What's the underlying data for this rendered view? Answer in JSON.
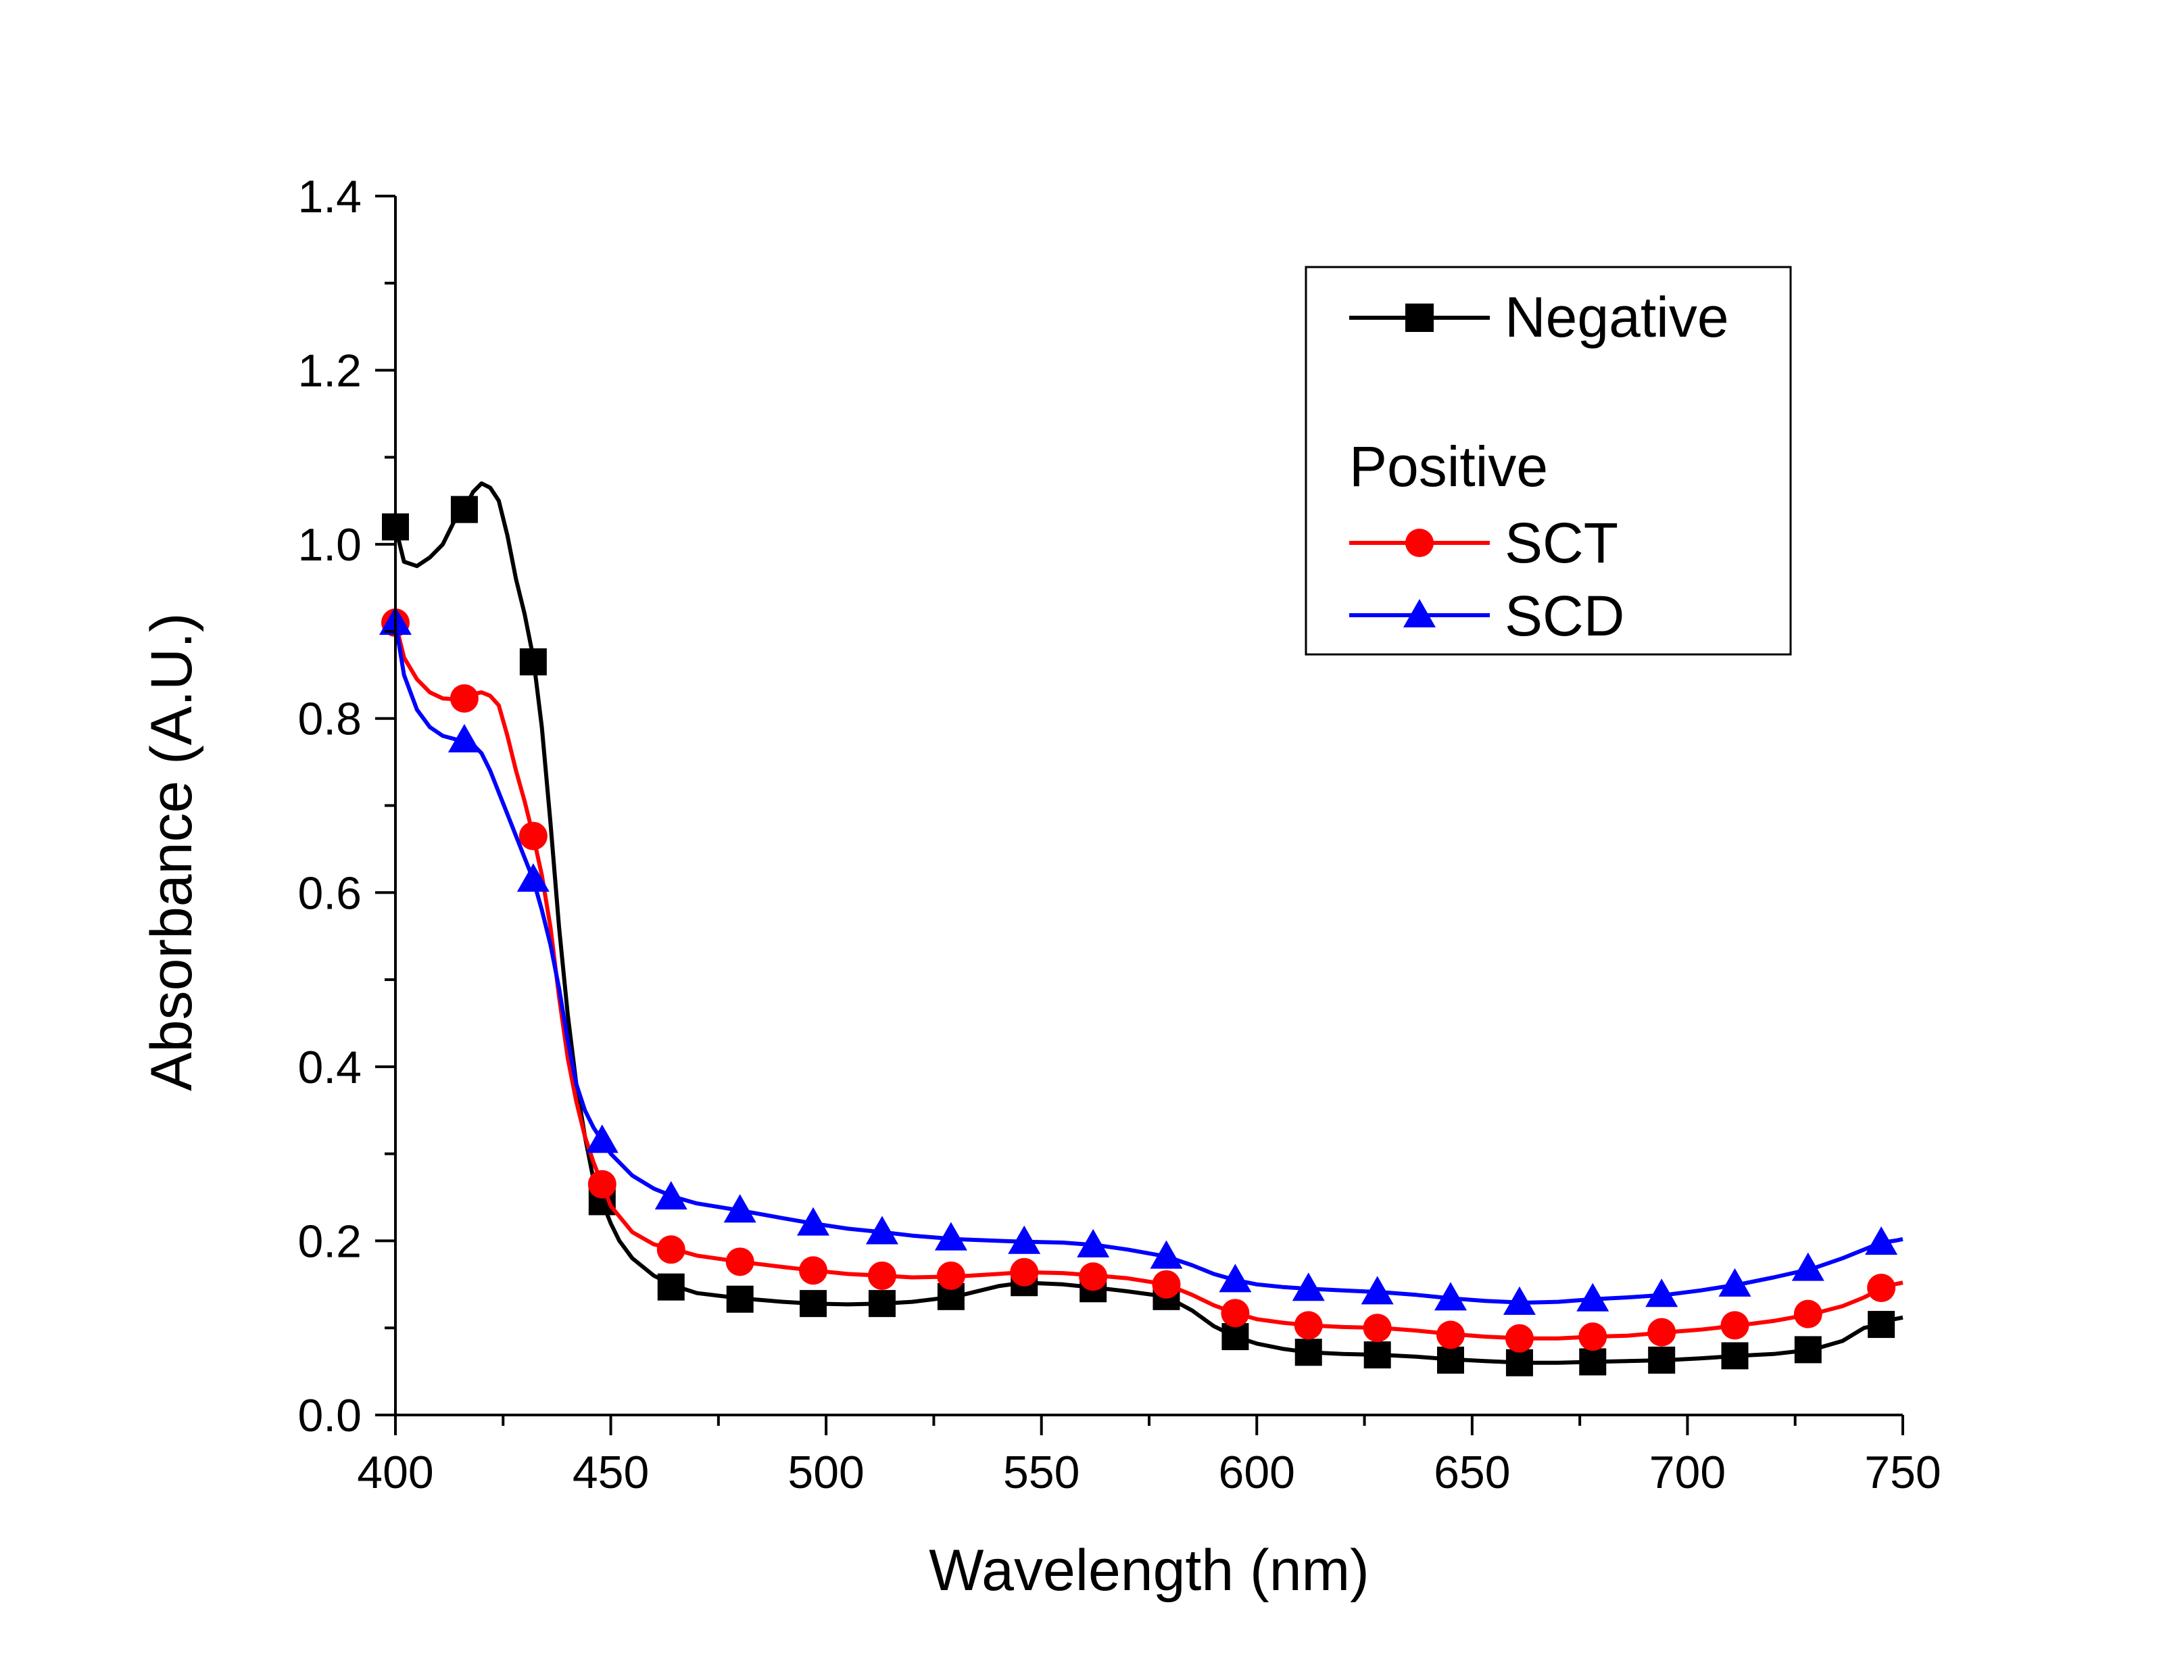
{
  "chart_data": {
    "type": "line",
    "title": "",
    "xlabel": "Wavelength (nm)",
    "ylabel": "Absorbance (A.U.)",
    "xlim": [
      400,
      750
    ],
    "ylim": [
      0.0,
      1.4
    ],
    "x_ticks": [
      "400",
      "450",
      "500",
      "550",
      "600",
      "650",
      "700",
      "750"
    ],
    "y_ticks": [
      "0.0",
      "0.2",
      "0.4",
      "0.6",
      "0.8",
      "1.0",
      "1.2",
      "1.4"
    ],
    "grid": false,
    "legend_position": "top-right",
    "legend": {
      "group_heading": "Positive",
      "entries": [
        "Negative",
        "SCT",
        "SCD"
      ]
    },
    "series": [
      {
        "name": "Negative",
        "color": "#000000",
        "marker": "square",
        "x": [
          400,
          402,
          405,
          408,
          411,
          414,
          416,
          418,
          420,
          422,
          424,
          426,
          428,
          430,
          432,
          434,
          436,
          438,
          440,
          442,
          444,
          446,
          448,
          450,
          452,
          455,
          460,
          465,
          470,
          480,
          490,
          497,
          505,
          513,
          520,
          530,
          540,
          546,
          555,
          563,
          570,
          579,
          585,
          590,
          595,
          600,
          606,
          612,
          620,
          629,
          637,
          645,
          653,
          662,
          670,
          678,
          686,
          695,
          703,
          712,
          720,
          729,
          736,
          741,
          745,
          748,
          750
        ],
        "y": [
          1.02,
          0.98,
          0.975,
          0.985,
          1.0,
          1.03,
          1.04,
          1.06,
          1.07,
          1.065,
          1.05,
          1.01,
          0.96,
          0.92,
          0.87,
          0.79,
          0.68,
          0.56,
          0.46,
          0.38,
          0.32,
          0.27,
          0.245,
          0.22,
          0.2,
          0.18,
          0.16,
          0.148,
          0.14,
          0.134,
          0.13,
          0.128,
          0.127,
          0.128,
          0.13,
          0.136,
          0.148,
          0.152,
          0.15,
          0.146,
          0.142,
          0.136,
          0.12,
          0.102,
          0.09,
          0.082,
          0.076,
          0.072,
          0.07,
          0.069,
          0.067,
          0.064,
          0.062,
          0.06,
          0.06,
          0.061,
          0.062,
          0.063,
          0.065,
          0.068,
          0.07,
          0.075,
          0.085,
          0.1,
          0.104,
          0.11,
          0.112
        ],
        "marker_x": [
          400,
          416,
          432,
          448,
          464,
          480,
          497,
          513,
          529,
          546,
          562,
          579,
          595,
          612,
          628,
          645,
          661,
          678,
          694,
          711,
          728,
          745
        ],
        "marker_y": [
          1.02,
          1.04,
          0.865,
          0.245,
          0.147,
          0.133,
          0.128,
          0.128,
          0.136,
          0.152,
          0.145,
          0.136,
          0.09,
          0.072,
          0.069,
          0.063,
          0.06,
          0.061,
          0.063,
          0.068,
          0.075,
          0.104
        ]
      },
      {
        "name": "SCT",
        "color": "#ff0000",
        "marker": "circle",
        "x": [
          400,
          402,
          405,
          408,
          411,
          414,
          416,
          418,
          420,
          422,
          424,
          426,
          428,
          430,
          432,
          434,
          436,
          438,
          440,
          442,
          444,
          446,
          448,
          450,
          455,
          460,
          465,
          470,
          480,
          490,
          497,
          505,
          513,
          520,
          530,
          540,
          546,
          555,
          563,
          570,
          579,
          585,
          590,
          595,
          600,
          606,
          612,
          620,
          629,
          637,
          645,
          653,
          662,
          670,
          678,
          686,
          695,
          703,
          712,
          720,
          729,
          736,
          741,
          745,
          748,
          750
        ],
        "y": [
          0.91,
          0.87,
          0.845,
          0.83,
          0.823,
          0.822,
          0.823,
          0.828,
          0.83,
          0.826,
          0.815,
          0.78,
          0.74,
          0.705,
          0.665,
          0.62,
          0.56,
          0.48,
          0.41,
          0.36,
          0.32,
          0.29,
          0.265,
          0.24,
          0.21,
          0.196,
          0.19,
          0.183,
          0.176,
          0.17,
          0.166,
          0.162,
          0.16,
          0.158,
          0.159,
          0.162,
          0.164,
          0.163,
          0.16,
          0.157,
          0.15,
          0.138,
          0.126,
          0.117,
          0.11,
          0.106,
          0.103,
          0.101,
          0.1,
          0.097,
          0.093,
          0.09,
          0.088,
          0.088,
          0.09,
          0.091,
          0.095,
          0.098,
          0.103,
          0.108,
          0.116,
          0.125,
          0.135,
          0.145,
          0.15,
          0.152
        ],
        "marker_x": [
          400,
          416,
          432,
          448,
          464,
          480,
          497,
          513,
          529,
          546,
          562,
          579,
          595,
          612,
          628,
          645,
          661,
          678,
          694,
          711,
          728,
          745
        ],
        "marker_y": [
          0.91,
          0.823,
          0.665,
          0.265,
          0.19,
          0.176,
          0.166,
          0.16,
          0.16,
          0.164,
          0.159,
          0.15,
          0.117,
          0.103,
          0.1,
          0.092,
          0.088,
          0.09,
          0.095,
          0.103,
          0.116,
          0.146
        ]
      },
      {
        "name": "SCD",
        "color": "#0000ff",
        "marker": "triangle",
        "x": [
          400,
          402,
          405,
          408,
          411,
          414,
          416,
          418,
          420,
          422,
          424,
          426,
          428,
          430,
          432,
          434,
          436,
          438,
          440,
          442,
          444,
          446,
          448,
          450,
          455,
          460,
          465,
          470,
          480,
          490,
          497,
          505,
          513,
          520,
          530,
          540,
          546,
          555,
          563,
          570,
          579,
          585,
          590,
          595,
          600,
          606,
          612,
          620,
          629,
          637,
          645,
          653,
          662,
          670,
          678,
          686,
          695,
          703,
          712,
          720,
          729,
          736,
          741,
          745,
          748,
          750
        ],
        "y": [
          0.91,
          0.85,
          0.81,
          0.79,
          0.78,
          0.776,
          0.775,
          0.77,
          0.76,
          0.74,
          0.715,
          0.69,
          0.665,
          0.64,
          0.615,
          0.58,
          0.54,
          0.49,
          0.43,
          0.38,
          0.35,
          0.33,
          0.315,
          0.3,
          0.275,
          0.26,
          0.25,
          0.243,
          0.235,
          0.226,
          0.22,
          0.214,
          0.21,
          0.206,
          0.202,
          0.2,
          0.199,
          0.198,
          0.195,
          0.19,
          0.182,
          0.172,
          0.162,
          0.155,
          0.15,
          0.147,
          0.145,
          0.143,
          0.141,
          0.138,
          0.134,
          0.131,
          0.129,
          0.13,
          0.133,
          0.135,
          0.138,
          0.143,
          0.15,
          0.158,
          0.168,
          0.18,
          0.19,
          0.198,
          0.2,
          0.202
        ],
        "marker_x": [
          400,
          416,
          432,
          448,
          464,
          480,
          497,
          513,
          529,
          546,
          562,
          579,
          595,
          612,
          628,
          645,
          661,
          678,
          694,
          711,
          728,
          745
        ],
        "marker_y": [
          0.91,
          0.775,
          0.615,
          0.315,
          0.25,
          0.235,
          0.22,
          0.21,
          0.203,
          0.199,
          0.195,
          0.182,
          0.155,
          0.145,
          0.141,
          0.134,
          0.129,
          0.133,
          0.138,
          0.15,
          0.168,
          0.198
        ]
      }
    ]
  }
}
